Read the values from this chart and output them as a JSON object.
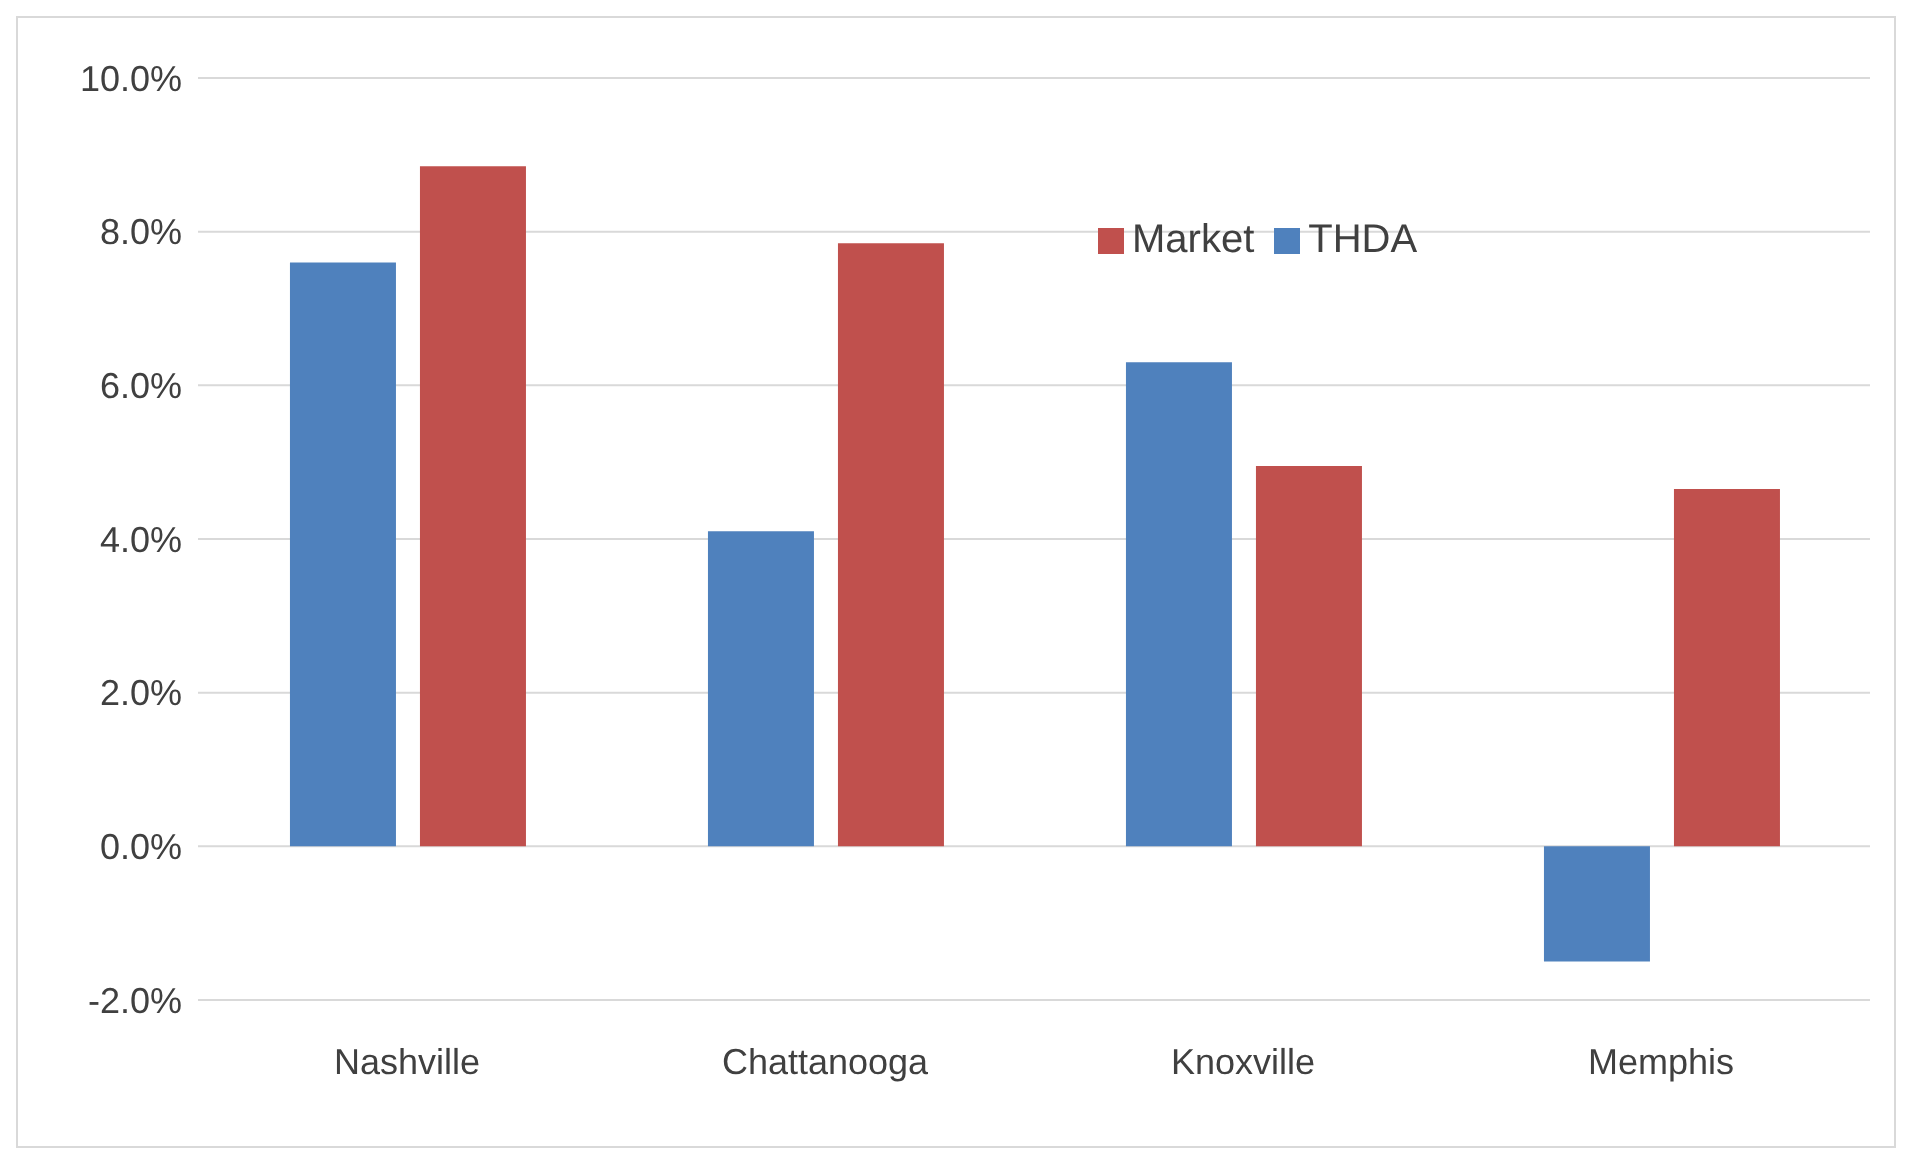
{
  "chart_data": {
    "type": "bar",
    "categories": [
      "Nashville",
      "Chattanooga",
      "Knoxville",
      "Memphis"
    ],
    "series": [
      {
        "name": "THDA",
        "color": "#4f81bd",
        "values": [
          7.6,
          4.1,
          6.3,
          -1.5
        ]
      },
      {
        "name": "Market",
        "color": "#c0504d",
        "values": [
          8.85,
          7.85,
          4.95,
          4.65
        ]
      }
    ],
    "ylim": [
      -2,
      10
    ],
    "yticks": [
      {
        "value": -2,
        "label": "-2.0%"
      },
      {
        "value": 0,
        "label": "0.0%"
      },
      {
        "value": 2,
        "label": "2.0%"
      },
      {
        "value": 4,
        "label": "4.0%"
      },
      {
        "value": 6,
        "label": "6.0%"
      },
      {
        "value": 8,
        "label": "8.0%"
      },
      {
        "value": 10,
        "label": "10.0%"
      }
    ],
    "grid": "y",
    "legend": "top right"
  }
}
